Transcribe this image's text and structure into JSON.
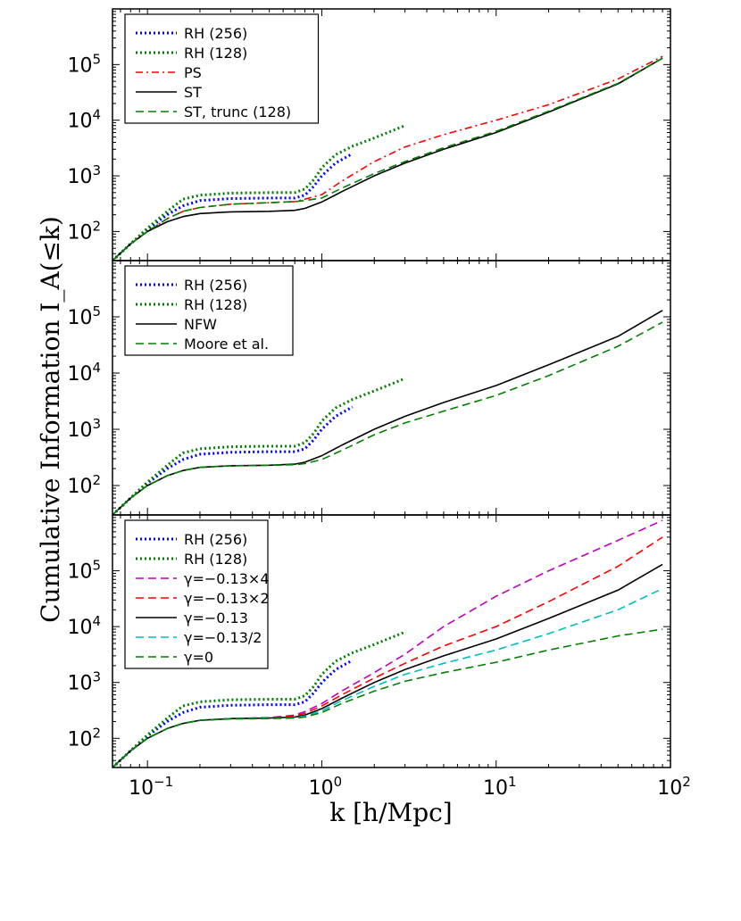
{
  "ylabel": "Cumulative Information I_A(≤k)",
  "xlabel": "k [h/Mpc]",
  "chart_data": [
    {
      "type": "line",
      "panel": "top",
      "xscale": "log",
      "yscale": "log",
      "xlim": [
        0.063,
        100
      ],
      "ylim": [
        30,
        1000000
      ],
      "legend_placement": "top-left",
      "series": [
        {
          "name": "RH (256)",
          "color": "#0000ff",
          "style": "dotted",
          "x": [
            0.063,
            0.08,
            0.1,
            0.13,
            0.16,
            0.2,
            0.3,
            0.5,
            0.7,
            0.8,
            0.9,
            1.0,
            1.2,
            1.5
          ],
          "y": [
            30,
            60,
            110,
            200,
            290,
            360,
            390,
            400,
            400,
            450,
            650,
            1000,
            1700,
            2500
          ]
        },
        {
          "name": "RH (128)",
          "color": "#008000",
          "style": "dotted",
          "x": [
            0.063,
            0.08,
            0.1,
            0.13,
            0.16,
            0.2,
            0.3,
            0.5,
            0.7,
            0.8,
            0.9,
            1.0,
            1.2,
            1.5,
            2.0,
            3.0
          ],
          "y": [
            30,
            60,
            115,
            230,
            380,
            450,
            490,
            500,
            500,
            580,
            850,
            1400,
            2400,
            3400,
            4800,
            8000
          ]
        },
        {
          "name": "PS",
          "color": "#ff0000",
          "style": "dashdot",
          "x": [
            0.063,
            0.08,
            0.1,
            0.13,
            0.16,
            0.2,
            0.3,
            0.5,
            0.7,
            0.8,
            1.0,
            1.3,
            2,
            3,
            5,
            10,
            20,
            50,
            90
          ],
          "y": [
            30,
            60,
            100,
            170,
            230,
            270,
            310,
            330,
            345,
            380,
            460,
            800,
            1800,
            3300,
            5500,
            10000,
            19000,
            55000,
            140000
          ]
        },
        {
          "name": "ST",
          "color": "#000000",
          "style": "solid",
          "x": [
            0.063,
            0.08,
            0.1,
            0.13,
            0.16,
            0.2,
            0.3,
            0.5,
            0.7,
            0.8,
            1.0,
            1.3,
            2,
            3,
            5,
            10,
            20,
            50,
            90
          ],
          "y": [
            30,
            60,
            100,
            150,
            185,
            210,
            225,
            230,
            240,
            260,
            340,
            520,
            1000,
            1700,
            3000,
            6000,
            14000,
            45000,
            130000
          ]
        },
        {
          "name": "ST, trunc (128)",
          "color": "#008000",
          "style": "dashed",
          "x": [
            0.063,
            0.08,
            0.1,
            0.13,
            0.16,
            0.2,
            0.3,
            0.5,
            0.7,
            0.8,
            1.0,
            1.3,
            2,
            3,
            5,
            10,
            20,
            50,
            90
          ],
          "y": [
            30,
            60,
            100,
            170,
            230,
            270,
            310,
            330,
            345,
            360,
            400,
            600,
            1100,
            1800,
            3200,
            6300,
            14500,
            46000,
            130000
          ]
        }
      ]
    },
    {
      "type": "line",
      "panel": "middle",
      "xscale": "log",
      "yscale": "log",
      "xlim": [
        0.063,
        100
      ],
      "ylim": [
        30,
        1000000
      ],
      "legend_placement": "top-left",
      "series": [
        {
          "name": "RH (256)",
          "color": "#0000ff",
          "style": "dotted",
          "x": [
            0.063,
            0.08,
            0.1,
            0.13,
            0.16,
            0.2,
            0.3,
            0.5,
            0.7,
            0.8,
            0.9,
            1.0,
            1.2,
            1.5
          ],
          "y": [
            30,
            60,
            110,
            200,
            290,
            360,
            390,
            400,
            400,
            450,
            650,
            1000,
            1700,
            2500
          ]
        },
        {
          "name": "RH (128)",
          "color": "#008000",
          "style": "dotted",
          "x": [
            0.063,
            0.08,
            0.1,
            0.13,
            0.16,
            0.2,
            0.3,
            0.5,
            0.7,
            0.8,
            0.9,
            1.0,
            1.2,
            1.5,
            2.0,
            3.0
          ],
          "y": [
            30,
            60,
            115,
            230,
            380,
            450,
            490,
            500,
            500,
            580,
            850,
            1400,
            2400,
            3400,
            4800,
            8000
          ]
        },
        {
          "name": "NFW",
          "color": "#000000",
          "style": "solid",
          "x": [
            0.063,
            0.08,
            0.1,
            0.13,
            0.16,
            0.2,
            0.3,
            0.5,
            0.7,
            0.8,
            1.0,
            1.3,
            2,
            3,
            5,
            10,
            20,
            50,
            90
          ],
          "y": [
            30,
            60,
            100,
            150,
            185,
            210,
            225,
            230,
            240,
            260,
            340,
            520,
            1000,
            1700,
            3000,
            6000,
            14000,
            45000,
            130000
          ]
        },
        {
          "name": "Moore et al.",
          "color": "#008000",
          "style": "dashed",
          "x": [
            0.063,
            0.08,
            0.1,
            0.13,
            0.16,
            0.2,
            0.3,
            0.5,
            0.7,
            0.8,
            1.0,
            1.3,
            2,
            3,
            5,
            10,
            20,
            50,
            90
          ],
          "y": [
            30,
            60,
            100,
            150,
            185,
            210,
            225,
            230,
            235,
            245,
            290,
            420,
            800,
            1300,
            2100,
            4000,
            9000,
            30000,
            80000
          ]
        }
      ]
    },
    {
      "type": "line",
      "panel": "bottom",
      "xscale": "log",
      "yscale": "log",
      "xlim": [
        0.063,
        100
      ],
      "ylim": [
        30,
        1000000
      ],
      "xticks": [
        "10^-1",
        "10^0",
        "10^1",
        "10^2"
      ],
      "legend_placement": "top-left",
      "series": [
        {
          "name": "RH (256)",
          "color": "#0000ff",
          "style": "dotted",
          "x": [
            0.063,
            0.08,
            0.1,
            0.13,
            0.16,
            0.2,
            0.3,
            0.5,
            0.7,
            0.8,
            0.9,
            1.0,
            1.2,
            1.5
          ],
          "y": [
            30,
            60,
            110,
            200,
            290,
            360,
            390,
            400,
            400,
            450,
            650,
            1000,
            1700,
            2500
          ]
        },
        {
          "name": "RH (128)",
          "color": "#008000",
          "style": "dotted",
          "x": [
            0.063,
            0.08,
            0.1,
            0.13,
            0.16,
            0.2,
            0.3,
            0.5,
            0.7,
            0.8,
            0.9,
            1.0,
            1.2,
            1.5,
            2.0,
            3.0
          ],
          "y": [
            30,
            60,
            115,
            230,
            380,
            450,
            490,
            500,
            500,
            580,
            850,
            1400,
            2400,
            3400,
            4800,
            8000
          ]
        },
        {
          "name": "γ=−0.13×4",
          "color": "#bf00bf",
          "style": "dashed",
          "x": [
            0.063,
            0.08,
            0.1,
            0.13,
            0.16,
            0.2,
            0.3,
            0.5,
            0.7,
            0.8,
            1.0,
            1.3,
            2,
            3,
            5,
            10,
            20,
            50,
            90
          ],
          "y": [
            30,
            60,
            100,
            150,
            185,
            210,
            225,
            235,
            260,
            300,
            420,
            700,
            1500,
            3200,
            10000,
            35000,
            100000,
            350000,
            800000
          ]
        },
        {
          "name": "γ=−0.13×2",
          "color": "#ff0000",
          "style": "dashed",
          "x": [
            0.063,
            0.08,
            0.1,
            0.13,
            0.16,
            0.2,
            0.3,
            0.5,
            0.7,
            0.8,
            1.0,
            1.3,
            2,
            3,
            5,
            10,
            20,
            50,
            90
          ],
          "y": [
            30,
            60,
            100,
            150,
            185,
            210,
            225,
            232,
            250,
            280,
            380,
            600,
            1200,
            2200,
            4500,
            10000,
            28000,
            120000,
            400000
          ]
        },
        {
          "name": "γ=−0.13",
          "color": "#000000",
          "style": "solid",
          "x": [
            0.063,
            0.08,
            0.1,
            0.13,
            0.16,
            0.2,
            0.3,
            0.5,
            0.7,
            0.8,
            1.0,
            1.3,
            2,
            3,
            5,
            10,
            20,
            50,
            90
          ],
          "y": [
            30,
            60,
            100,
            150,
            185,
            210,
            225,
            230,
            240,
            260,
            340,
            520,
            1000,
            1700,
            3000,
            6000,
            14000,
            45000,
            130000
          ]
        },
        {
          "name": "γ=−0.13/2",
          "color": "#00bfbf",
          "style": "dashed",
          "x": [
            0.063,
            0.08,
            0.1,
            0.13,
            0.16,
            0.2,
            0.3,
            0.5,
            0.7,
            0.8,
            1.0,
            1.3,
            2,
            3,
            5,
            10,
            20,
            50,
            90
          ],
          "y": [
            30,
            60,
            100,
            150,
            185,
            210,
            225,
            228,
            235,
            250,
            310,
            470,
            850,
            1400,
            2200,
            3800,
            7500,
            20000,
            48000
          ]
        },
        {
          "name": "γ=0",
          "color": "#008000",
          "style": "dashed",
          "x": [
            0.063,
            0.08,
            0.1,
            0.13,
            0.16,
            0.2,
            0.3,
            0.5,
            0.7,
            0.8,
            1.0,
            1.3,
            2,
            3,
            5,
            10,
            20,
            50,
            90
          ],
          "y": [
            30,
            60,
            100,
            150,
            185,
            210,
            222,
            225,
            230,
            240,
            290,
            420,
            700,
            1050,
            1500,
            2300,
            3800,
            6800,
            9000
          ]
        }
      ]
    }
  ]
}
